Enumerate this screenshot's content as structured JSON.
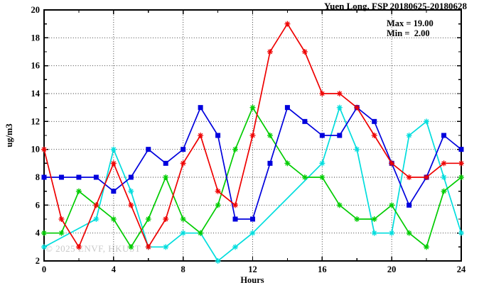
{
  "title": "Yuen Long, FSP 20180625-20180628",
  "stats": {
    "max_label": "Max = 19.00",
    "min_label": "Min =  2.00"
  },
  "watermark": "© 2025 ENVF, HKUST",
  "chart_data": {
    "type": "line",
    "title": "Yuen Long, FSP 20180625-20180628",
    "xlabel": "Hours",
    "ylabel": "ug/m3",
    "xlim": [
      0,
      24
    ],
    "ylim": [
      2,
      20
    ],
    "x_major_ticks": [
      0,
      4,
      8,
      12,
      16,
      20,
      24
    ],
    "x_minor_tick_step": 2,
    "y_major_ticks": [
      2,
      4,
      6,
      8,
      10,
      12,
      14,
      16,
      18,
      20
    ],
    "y_minor_tick_step": 1,
    "grid": true,
    "legend_position": "none",
    "annotations": [
      "Max = 19.00",
      "Min =  2.00"
    ],
    "x": [
      0,
      1,
      2,
      3,
      4,
      5,
      6,
      7,
      8,
      9,
      10,
      11,
      12,
      13,
      14,
      15,
      16,
      17,
      18,
      19,
      20,
      21,
      22,
      23,
      24
    ],
    "series": [
      {
        "name": "cyan-series",
        "color": "#00dddd",
        "marker": "asterisk",
        "values": [
          3,
          null,
          null,
          5,
          10,
          7,
          3,
          3,
          4,
          4,
          2,
          3,
          4,
          null,
          null,
          null,
          9,
          13,
          10,
          4,
          4,
          11,
          12,
          8,
          4
        ]
      },
      {
        "name": "green-series",
        "color": "#00cc00",
        "marker": "asterisk",
        "values": [
          4,
          4,
          7,
          6,
          5,
          3,
          5,
          8,
          5,
          4,
          6,
          10,
          13,
          11,
          9,
          8,
          8,
          6,
          5,
          5,
          6,
          4,
          3,
          7,
          8
        ]
      },
      {
        "name": "blue-series",
        "color": "#0000dd",
        "marker": "square",
        "values": [
          8,
          8,
          8,
          8,
          7,
          8,
          10,
          9,
          10,
          13,
          11,
          5,
          5,
          9,
          13,
          12,
          11,
          11,
          13,
          12,
          9,
          6,
          8,
          11,
          10
        ]
      },
      {
        "name": "red-series",
        "color": "#ee0000",
        "marker": "asterisk",
        "values": [
          10,
          5,
          3,
          6,
          9,
          6,
          3,
          5,
          9,
          11,
          7,
          6,
          11,
          17,
          19,
          17,
          14,
          14,
          13,
          11,
          9,
          8,
          8,
          9,
          9
        ]
      }
    ]
  }
}
